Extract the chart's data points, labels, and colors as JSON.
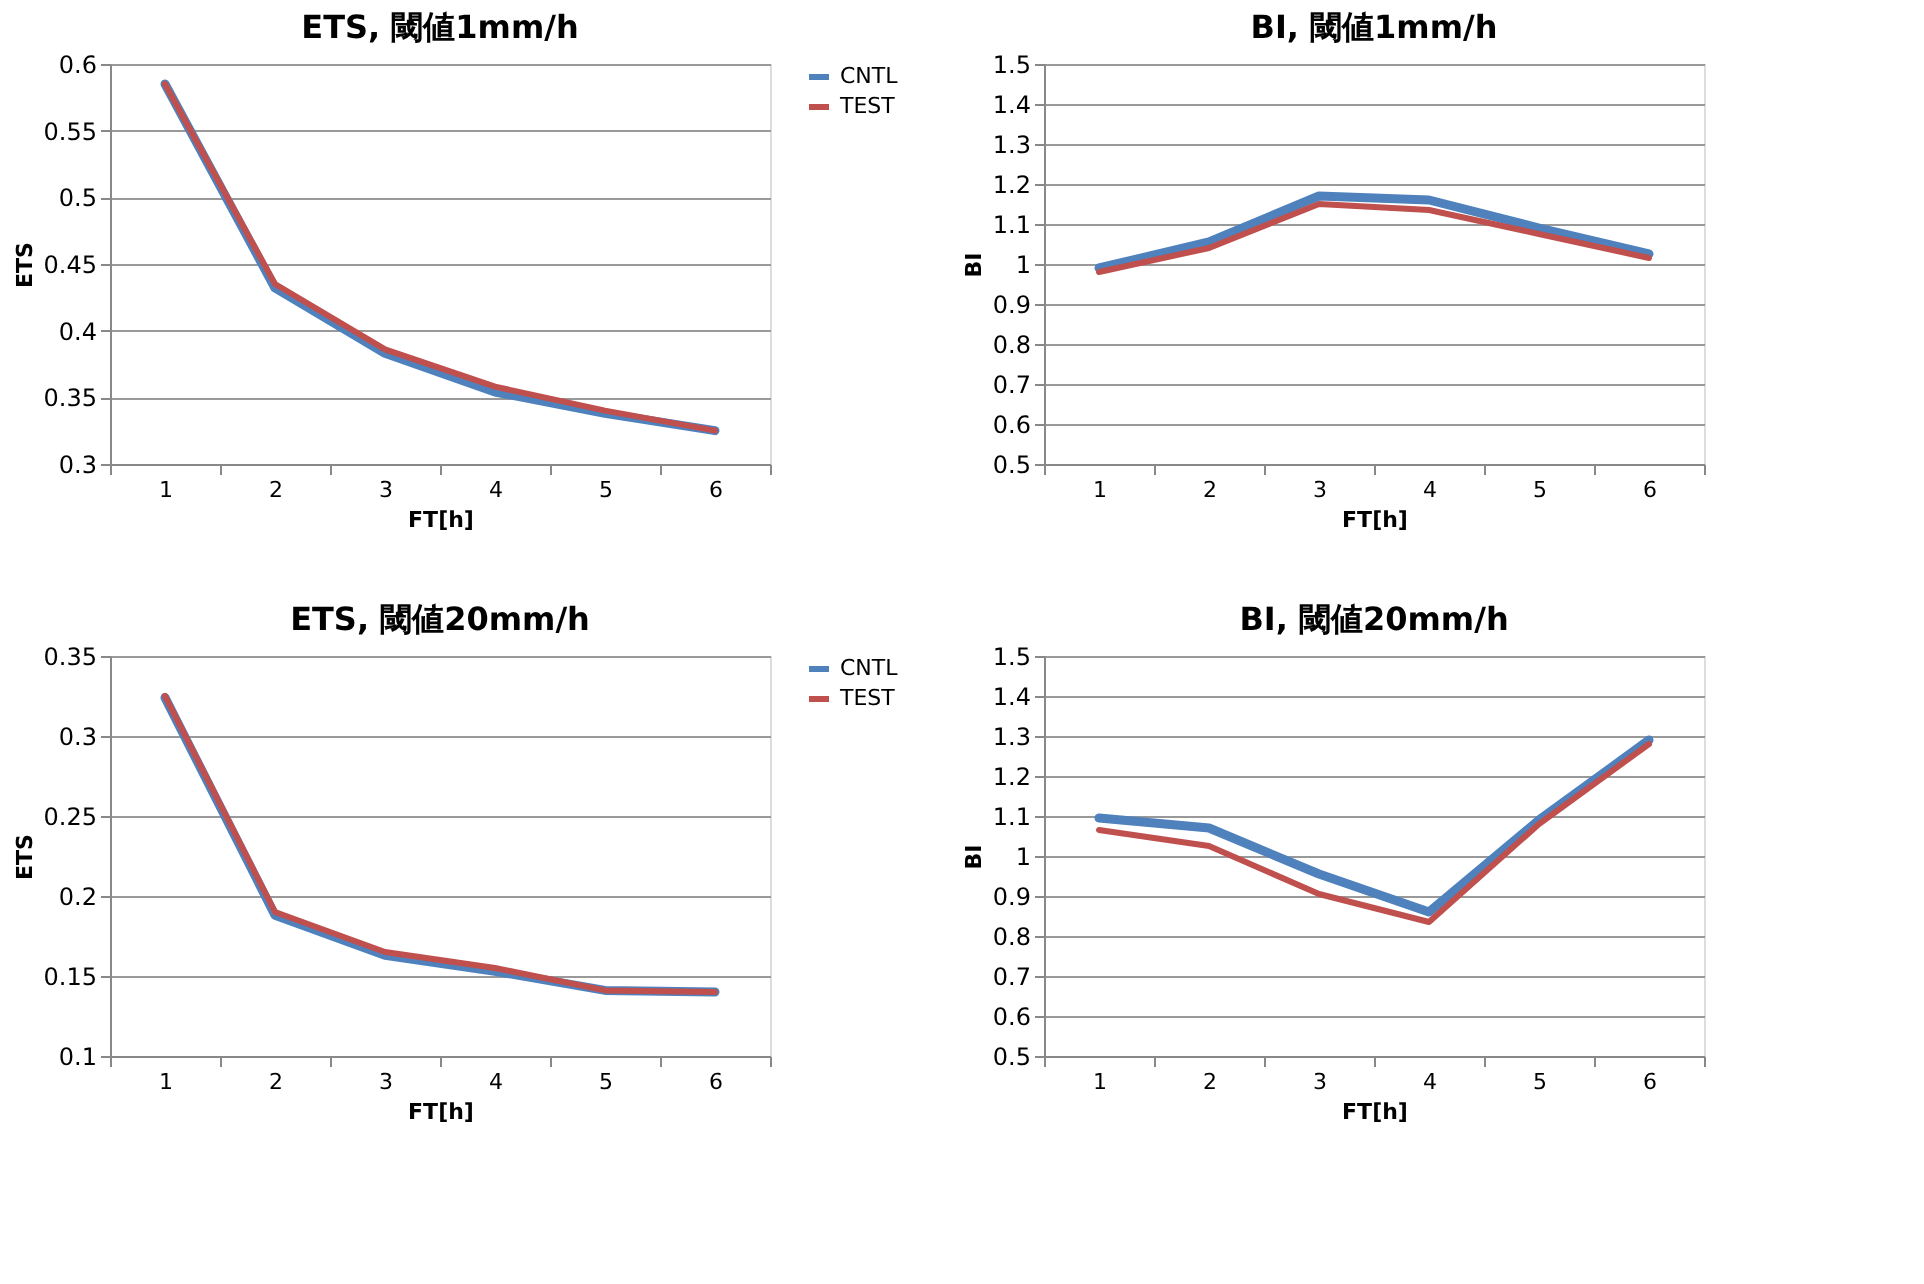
{
  "chart_data": [
    {
      "type": "line",
      "title": "ETS, 閾値1mm/h",
      "xlabel": "FT[h]",
      "ylabel": "ETS",
      "categories": [
        "1",
        "2",
        "3",
        "4",
        "5",
        "6"
      ],
      "series": [
        {
          "name": "CNTL",
          "color": "#4f81bd",
          "values": [
            0.585,
            0.432,
            0.383,
            0.354,
            0.338,
            0.325
          ]
        },
        {
          "name": "TEST",
          "color": "#c0504d",
          "values": [
            0.585,
            0.435,
            0.386,
            0.358,
            0.34,
            0.325
          ]
        }
      ],
      "ylim": [
        0.3,
        0.6
      ],
      "yticks": [
        0.3,
        0.35,
        0.4,
        0.45,
        0.5,
        0.55,
        0.6
      ],
      "grid": "y",
      "legend": "right",
      "marker": "none",
      "line_style": "solid"
    },
    {
      "type": "line",
      "title": "BI, 閾値1mm/h",
      "xlabel": "FT[h]",
      "ylabel": "BI",
      "categories": [
        "1",
        "2",
        "3",
        "4",
        "5",
        "6"
      ],
      "series": [
        {
          "color": "#4f81bd",
          "values": [
            0.99,
            1.055,
            1.17,
            1.16,
            1.09,
            1.025
          ]
        },
        {
          "color": "#c0504d",
          "values": [
            0.98,
            1.04,
            1.15,
            1.135,
            1.075,
            1.015
          ]
        }
      ],
      "ylim": [
        0.5,
        1.5
      ],
      "yticks": [
        0.5,
        0.6,
        0.7,
        0.8,
        0.9,
        1,
        1.1,
        1.2,
        1.3,
        1.4,
        1.5
      ],
      "grid": "y",
      "marker": "none",
      "line_style": "solid"
    },
    {
      "type": "line",
      "title": "ETS, 閾値20mm/h",
      "xlabel": "FT[h]",
      "ylabel": "ETS",
      "categories": [
        "1",
        "2",
        "3",
        "4",
        "5",
        "6"
      ],
      "series": [
        {
          "name": "CNTL",
          "color": "#4f81bd",
          "values": [
            0.324,
            0.188,
            0.163,
            0.153,
            0.141,
            0.14
          ]
        },
        {
          "name": "TEST",
          "color": "#c0504d",
          "values": [
            0.325,
            0.19,
            0.165,
            0.155,
            0.141,
            0.14
          ]
        }
      ],
      "ylim": [
        0.1,
        0.35
      ],
      "yticks": [
        0.1,
        0.15,
        0.2,
        0.25,
        0.3,
        0.35
      ],
      "grid": "y",
      "legend": "right",
      "marker": "none",
      "line_style": "solid"
    },
    {
      "type": "line",
      "title": "BI, 閾値20mm/h",
      "xlabel": "FT[h]",
      "ylabel": "BI",
      "categories": [
        "1",
        "2",
        "3",
        "4",
        "5",
        "6"
      ],
      "series": [
        {
          "color": "#4f81bd",
          "values": [
            1.095,
            1.07,
            0.955,
            0.86,
            1.09,
            1.29
          ]
        },
        {
          "color": "#c0504d",
          "values": [
            1.065,
            1.025,
            0.905,
            0.835,
            1.08,
            1.28
          ]
        }
      ],
      "ylim": [
        0.5,
        1.5
      ],
      "yticks": [
        0.5,
        0.6,
        0.7,
        0.8,
        0.9,
        1,
        1.1,
        1.2,
        1.3,
        1.4,
        1.5
      ],
      "grid": "y",
      "marker": "none",
      "line_style": "solid"
    }
  ]
}
